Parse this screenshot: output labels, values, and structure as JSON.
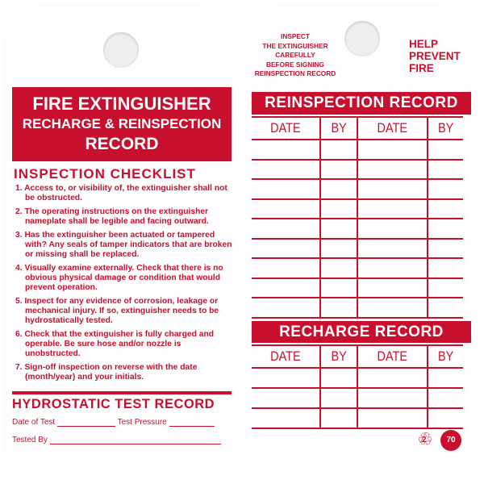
{
  "front": {
    "title_lines": [
      "FIRE EXTINGUISHER",
      "RECHARGE & REINSPECTION",
      "RECORD"
    ],
    "checklist_title": "INSPECTION CHECKLIST",
    "checklist": [
      "1. Access to, or visibility of, the extinguisher shall not be obstructed.",
      "2. The operating instructions on the extinguisher nameplate shall be legible and facing outward.",
      "3. Has the extinguisher been actuated or tampered with?  Any seals of tamper indicators that are broken or missing shall be replaced.",
      "4. Visually examine externally.  Check that there is no obvious physical damage or condition that would prevent operation.",
      "5. Inspect for any evidence of corrosion, leakage or mechanical injury.  If so, extinguisher needs to be hydrostatically tested.",
      "6. Check that the extinguisher is fully charged and operable.  Be sure hose and/or nozzle is unobstructed.",
      "7. Sign-off inspection on reverse with the date (month/year) and your initials."
    ],
    "hydro_title": "HYDROSTATIC TEST RECORD",
    "date_of_test": "Date of Test",
    "test_pressure": "Test Pressure",
    "tested_by": "Tested By"
  },
  "back": {
    "instruction": [
      "INSPECT",
      "THE EXTINGUISHER",
      "CAREFULLY",
      "BEFORE SIGNING",
      "REINSPECTION RECORD"
    ],
    "slogan": [
      "HELP",
      "PREVENT",
      "FIRE"
    ],
    "reinspection_title": "REINSPECTION RECORD",
    "recharge_title": "RECHARGE RECORD",
    "columns": [
      "DATE",
      "BY",
      "DATE",
      "BY"
    ],
    "recycle_code": "2",
    "recycled_percent": "70"
  },
  "colors": {
    "brand_red": "#c8102e"
  }
}
